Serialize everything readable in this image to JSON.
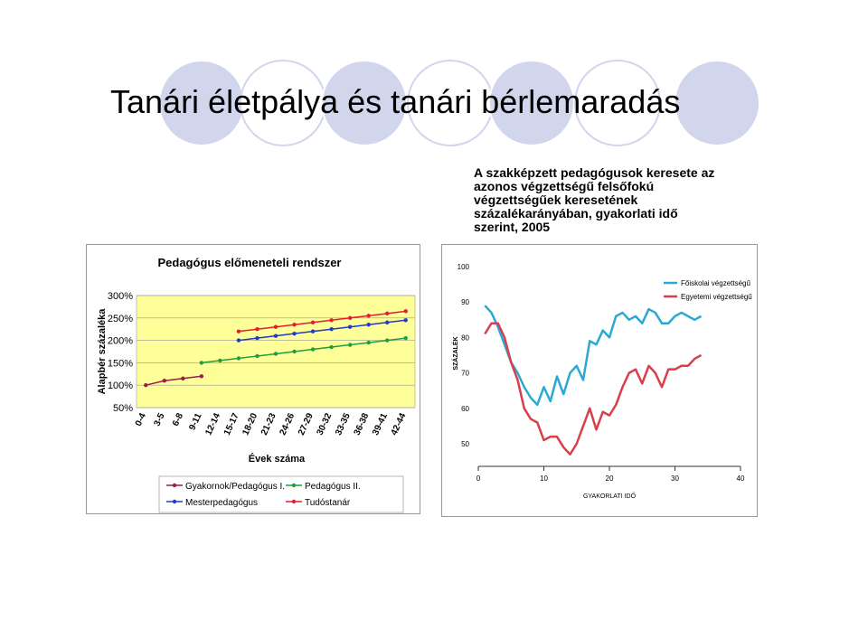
{
  "title": "Tanári életpálya és tanári bérlemaradás",
  "caption_lines": [
    "A szakképzett pedagógusok keresete az",
    "azonos végzettségű felsőfokú",
    "végzettségűek keresetének",
    "százalékarányában, gyakorlati idő",
    "szerint, 2005"
  ],
  "colors": {
    "decor": "#d2d6ec",
    "plot_bg": "#ffff99",
    "dark_red": "#9b1b4b",
    "green": "#1e9e3c",
    "blue": "#1e3cc8",
    "red": "#e11e32",
    "cyan": "#29a9d3",
    "crimson": "#d93f4a"
  },
  "chart_data": [
    {
      "type": "line",
      "title": "Pedagógus előmeneteli rendszer",
      "xlabel": "Évek száma",
      "ylabel": "Alapbér százaléka",
      "ylim": [
        50,
        300
      ],
      "y_ticks": [
        "50%",
        "100%",
        "150%",
        "200%",
        "250%",
        "300%"
      ],
      "y_tick_values": [
        50,
        100,
        150,
        200,
        250,
        300
      ],
      "categories": [
        "0-4",
        "3-5",
        "6-8",
        "9-11",
        "12-14",
        "15-17",
        "18-20",
        "21-23",
        "24-26",
        "27-29",
        "30-32",
        "33-35",
        "36-38",
        "39-41",
        "42-44"
      ],
      "grid": true,
      "legend_position": "bottom",
      "series": [
        {
          "name": "Gyakornok/Pedagógus I.",
          "color": "#9b1b4b",
          "values": [
            100,
            110,
            115,
            120,
            null,
            null,
            null,
            null,
            null,
            null,
            null,
            null,
            null,
            null,
            null
          ]
        },
        {
          "name": "Pedagógus II.",
          "color": "#1e9e3c",
          "values": [
            null,
            null,
            null,
            150,
            155,
            160,
            165,
            170,
            175,
            180,
            185,
            190,
            195,
            200,
            205
          ]
        },
        {
          "name": "Mesterpedagógus",
          "color": "#1e3cc8",
          "values": [
            null,
            null,
            null,
            null,
            null,
            200,
            205,
            210,
            215,
            220,
            225,
            230,
            235,
            240,
            245
          ]
        },
        {
          "name": "Tudóstanár",
          "color": "#e11e32",
          "values": [
            null,
            null,
            null,
            null,
            null,
            220,
            225,
            230,
            235,
            240,
            245,
            250,
            255,
            260,
            265
          ]
        }
      ]
    },
    {
      "type": "line",
      "xlabel": "GYAKORLATI IDŐ",
      "ylabel": "SZÁZALÉK",
      "xlim": [
        0,
        40
      ],
      "ylim": [
        50,
        100
      ],
      "x_ticks": [
        "0",
        "10",
        "20",
        "30",
        "40"
      ],
      "x_tick_values": [
        0,
        10,
        20,
        30,
        40
      ],
      "y_ticks": [
        "50",
        "60",
        "70",
        "80",
        "90",
        "100"
      ],
      "y_tick_values": [
        50,
        60,
        70,
        80,
        90,
        100
      ],
      "legend_position": "top-right",
      "series": [
        {
          "name": "Főiskolai végzettségű",
          "color": "#29a9d3",
          "x": [
            1,
            2,
            3,
            4,
            5,
            6,
            7,
            8,
            9,
            10,
            11,
            12,
            13,
            14,
            15,
            16,
            17,
            18,
            19,
            20,
            21,
            22,
            23,
            24,
            25,
            26,
            27,
            28,
            29,
            30,
            31,
            32,
            33,
            34
          ],
          "y": [
            89,
            87,
            83,
            78,
            73,
            70,
            66,
            63,
            61,
            66,
            62,
            69,
            64,
            70,
            72,
            68,
            79,
            78,
            82,
            80,
            86,
            87,
            85,
            86,
            84,
            88,
            87,
            84,
            84,
            86,
            87,
            86,
            85,
            86
          ]
        },
        {
          "name": "Egyetemi végzettségű",
          "color": "#d93f4a",
          "x": [
            1,
            2,
            3,
            4,
            5,
            6,
            7,
            8,
            9,
            10,
            11,
            12,
            13,
            14,
            15,
            16,
            17,
            18,
            19,
            20,
            21,
            22,
            23,
            24,
            25,
            26,
            27,
            28,
            29,
            30,
            31,
            32,
            33,
            34
          ],
          "y": [
            81,
            84,
            84,
            80,
            73,
            68,
            60,
            57,
            56,
            51,
            52,
            52,
            49,
            47,
            50,
            55,
            60,
            54,
            59,
            58,
            61,
            66,
            70,
            71,
            67,
            72,
            70,
            66,
            71,
            71,
            72,
            72,
            74,
            75
          ]
        }
      ]
    }
  ]
}
